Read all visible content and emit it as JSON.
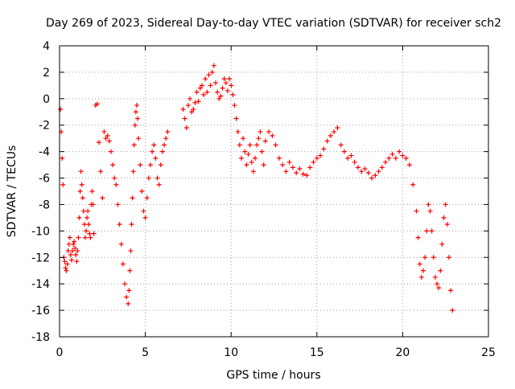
{
  "chart_data": {
    "type": "scatter",
    "title": "Day 269 of 2023, Sidereal Day-to-day VTEC variation (SDTVAR) for receiver sch2",
    "xlabel": "GPS time / hours",
    "ylabel": "SDTVAR / TECUs",
    "xlim": [
      0,
      25
    ],
    "ylim": [
      -18,
      4
    ],
    "x_ticks": [
      "0",
      "5",
      "10",
      "15",
      "20",
      "25"
    ],
    "y_ticks": [
      "4",
      "2",
      "0",
      "-2",
      "-4",
      "-6",
      "-8",
      "-10",
      "-12",
      "-14",
      "-16",
      "-18"
    ],
    "grid": true,
    "marker": "plus",
    "color": "#ff0000",
    "series": [
      {
        "name": "SDTVAR",
        "x": [
          0.05,
          0.1,
          0.15,
          0.2,
          0.25,
          0.3,
          0.35,
          0.4,
          0.45,
          0.5,
          0.55,
          0.6,
          0.65,
          0.7,
          0.75,
          0.8,
          0.85,
          0.9,
          0.95,
          1.0,
          1.05,
          1.1,
          1.15,
          1.2,
          1.25,
          1.3,
          1.35,
          1.4,
          1.45,
          1.5,
          1.55,
          1.6,
          1.65,
          1.7,
          1.75,
          1.8,
          1.85,
          1.9,
          1.95,
          2.0,
          2.1,
          2.2,
          2.3,
          2.4,
          2.5,
          2.6,
          2.7,
          2.8,
          2.9,
          3.0,
          3.1,
          3.2,
          3.3,
          3.4,
          3.5,
          3.6,
          3.7,
          3.8,
          3.9,
          4.0,
          4.05,
          4.1,
          4.15,
          4.2,
          4.25,
          4.3,
          4.35,
          4.4,
          4.45,
          4.5,
          4.55,
          4.6,
          4.7,
          4.8,
          4.9,
          5.0,
          5.1,
          5.2,
          5.3,
          5.4,
          5.5,
          5.6,
          5.7,
          5.8,
          5.9,
          6.0,
          6.1,
          6.2,
          6.3,
          7.2,
          7.3,
          7.4,
          7.5,
          7.6,
          7.7,
          7.8,
          7.9,
          8.0,
          8.1,
          8.2,
          8.3,
          8.4,
          8.5,
          8.6,
          8.7,
          8.8,
          8.9,
          9.0,
          9.1,
          9.2,
          9.3,
          9.4,
          9.5,
          9.6,
          9.7,
          9.8,
          9.9,
          10.0,
          10.1,
          10.2,
          10.3,
          10.4,
          10.5,
          10.6,
          10.7,
          10.8,
          10.9,
          11.0,
          11.1,
          11.2,
          11.3,
          11.4,
          11.5,
          11.6,
          11.7,
          11.8,
          11.9,
          12.0,
          12.2,
          12.4,
          12.6,
          12.8,
          13.0,
          13.2,
          13.4,
          13.6,
          13.8,
          14.0,
          14.2,
          14.4,
          14.6,
          14.8,
          15.0,
          15.2,
          15.4,
          15.6,
          15.8,
          16.0,
          16.2,
          16.4,
          16.6,
          16.8,
          17.0,
          17.2,
          17.4,
          17.6,
          17.8,
          18.0,
          18.2,
          18.4,
          18.6,
          18.8,
          19.0,
          19.2,
          19.4,
          19.6,
          19.8,
          20.0,
          20.2,
          20.4,
          20.6,
          20.8,
          20.9,
          21.0,
          21.1,
          21.2,
          21.3,
          21.4,
          21.5,
          21.6,
          21.7,
          21.8,
          21.9,
          22.0,
          22.1,
          22.2,
          22.3,
          22.4,
          22.5,
          22.6,
          22.7,
          22.8,
          22.9
        ],
        "y": [
          -0.8,
          -2.5,
          -4.5,
          -6.5,
          -12.0,
          -12.3,
          -12.8,
          -13.0,
          -12.5,
          -11.5,
          -11.0,
          -10.5,
          -11.8,
          -12.2,
          -11.5,
          -11.0,
          -10.8,
          -11.3,
          -11.8,
          -12.3,
          -11.5,
          -10.5,
          -9.0,
          -7.0,
          -5.5,
          -6.5,
          -7.5,
          -8.5,
          -9.5,
          -10.5,
          -10.0,
          -9.0,
          -8.5,
          -9.5,
          -10.2,
          -10.5,
          -8.0,
          -7.0,
          -8.0,
          -10.2,
          -0.5,
          -0.4,
          -3.3,
          -5.5,
          -7.5,
          -2.5,
          -3.0,
          -2.8,
          -3.2,
          -4.0,
          -5.0,
          -6.0,
          -6.5,
          -8.0,
          -9.5,
          -11.0,
          -12.5,
          -14.0,
          -15.0,
          -15.5,
          -14.5,
          -13.0,
          -11.5,
          -9.5,
          -7.5,
          -5.5,
          -3.5,
          -2.0,
          -1.0,
          -0.5,
          -1.5,
          -3.0,
          -5.0,
          -7.0,
          -8.5,
          -9.0,
          -7.5,
          -6.0,
          -5.0,
          -4.0,
          -3.5,
          -4.5,
          -6.0,
          -6.5,
          -5.0,
          -4.0,
          -3.5,
          -3.0,
          -2.5,
          -0.8,
          -1.5,
          -2.2,
          -0.5,
          0.0,
          -1.0,
          -0.8,
          -0.3,
          0.5,
          -0.2,
          0.8,
          1.0,
          0.3,
          1.5,
          0.5,
          1.8,
          1.0,
          2.0,
          2.5,
          1.2,
          0.5,
          0.0,
          0.2,
          0.8,
          1.5,
          1.2,
          0.6,
          1.5,
          1.0,
          0.3,
          -0.5,
          -1.5,
          -2.5,
          -3.5,
          -4.5,
          -3.0,
          -4.0,
          -5.0,
          -4.2,
          -3.5,
          -4.8,
          -5.5,
          -4.5,
          -3.5,
          -3.0,
          -2.5,
          -4.0,
          -5.0,
          -3.2,
          -2.5,
          -2.8,
          -3.5,
          -4.5,
          -5.0,
          -5.5,
          -4.8,
          -5.2,
          -5.6,
          -5.3,
          -5.7,
          -5.8,
          -5.2,
          -4.8,
          -4.5,
          -4.3,
          -3.8,
          -3.2,
          -2.8,
          -2.5,
          -2.2,
          -3.5,
          -4.0,
          -4.5,
          -4.3,
          -4.8,
          -5.2,
          -5.5,
          -5.3,
          -5.6,
          -6.0,
          -5.8,
          -5.5,
          -5.2,
          -4.8,
          -4.5,
          -4.2,
          -4.5,
          -4.0,
          -4.3,
          -4.5,
          -5.0,
          -6.5,
          -8.5,
          -10.5,
          -12.5,
          -13.5,
          -13.0,
          -12.0,
          -10.0,
          -8.0,
          -8.5,
          -10.0,
          -12.0,
          -13.5,
          -14.0,
          -14.3,
          -13.0,
          -11.0,
          -9.0,
          -8.0,
          -9.5,
          -12.0,
          -14.5,
          -16.0
        ]
      }
    ]
  }
}
